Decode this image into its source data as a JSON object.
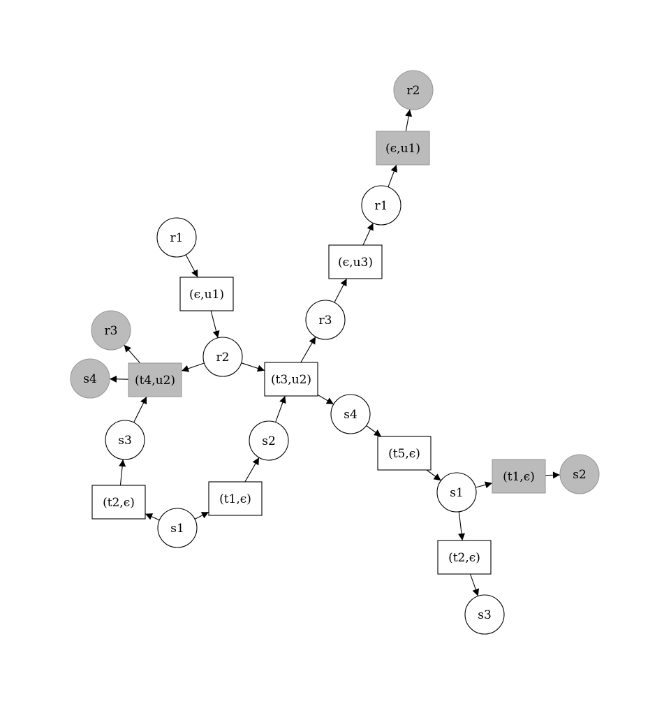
{
  "colors": {
    "background": "#ffffff",
    "stroke": "#000000",
    "highlight_fill": "#bbbbbb",
    "highlight_stroke": "#999999"
  },
  "graph": {
    "type": "petri-net-unfolding",
    "nodes": [
      {
        "id": "n_r2_top",
        "kind": "place",
        "label": "r2",
        "highlighted": true
      },
      {
        "id": "n_eu1_top",
        "kind": "transition",
        "label": "(ϵ,u1)",
        "highlighted": true
      },
      {
        "id": "n_r1_right",
        "kind": "place",
        "label": "r1",
        "highlighted": false
      },
      {
        "id": "n_eu3",
        "kind": "transition",
        "label": "(ϵ,u3)",
        "highlighted": false
      },
      {
        "id": "n_r3_mid",
        "kind": "place",
        "label": "r3",
        "highlighted": false
      },
      {
        "id": "n_r1_left",
        "kind": "place",
        "label": "r1",
        "highlighted": false
      },
      {
        "id": "n_eu1_left",
        "kind": "transition",
        "label": "(ϵ,u1)",
        "highlighted": false
      },
      {
        "id": "n_r3_gray",
        "kind": "place",
        "label": "r3",
        "highlighted": true
      },
      {
        "id": "n_r2_mid",
        "kind": "place",
        "label": "r2",
        "highlighted": false
      },
      {
        "id": "n_s4_gray",
        "kind": "place",
        "label": "s4",
        "highlighted": true
      },
      {
        "id": "n_t4u2",
        "kind": "transition",
        "label": "(t4,u2)",
        "highlighted": true
      },
      {
        "id": "n_t3u2",
        "kind": "transition",
        "label": "(t3,u2)",
        "highlighted": false
      },
      {
        "id": "n_s4_right",
        "kind": "place",
        "label": "s4",
        "highlighted": false
      },
      {
        "id": "n_s3_left",
        "kind": "place",
        "label": "s3",
        "highlighted": false
      },
      {
        "id": "n_s2_mid",
        "kind": "place",
        "label": "s2",
        "highlighted": false
      },
      {
        "id": "n_t5e",
        "kind": "transition",
        "label": "(t5,ϵ)",
        "highlighted": false
      },
      {
        "id": "n_t1e_gray",
        "kind": "transition",
        "label": "(t1,ϵ)",
        "highlighted": true
      },
      {
        "id": "n_s2_gray",
        "kind": "place",
        "label": "s2",
        "highlighted": true
      },
      {
        "id": "n_t1e_left",
        "kind": "transition",
        "label": "(t1,ϵ)",
        "highlighted": false
      },
      {
        "id": "n_s1_right",
        "kind": "place",
        "label": "s1",
        "highlighted": false
      },
      {
        "id": "n_t2e_left",
        "kind": "transition",
        "label": "(t2,ϵ)",
        "highlighted": false
      },
      {
        "id": "n_s1_left",
        "kind": "place",
        "label": "s1",
        "highlighted": false
      },
      {
        "id": "n_t2e_right",
        "kind": "transition",
        "label": "(t2,ϵ)",
        "highlighted": false
      },
      {
        "id": "n_s3_bottom",
        "kind": "place",
        "label": "s3",
        "highlighted": false
      }
    ],
    "edges": [
      {
        "from": "n_eu1_top",
        "to": "n_r2_top"
      },
      {
        "from": "n_r1_right",
        "to": "n_eu1_top"
      },
      {
        "from": "n_eu3",
        "to": "n_r1_right"
      },
      {
        "from": "n_r3_mid",
        "to": "n_eu3"
      },
      {
        "from": "n_t3u2",
        "to": "n_r3_mid"
      },
      {
        "from": "n_r1_left",
        "to": "n_eu1_left"
      },
      {
        "from": "n_eu1_left",
        "to": "n_r2_mid"
      },
      {
        "from": "n_r2_mid",
        "to": "n_t4u2"
      },
      {
        "from": "n_r2_mid",
        "to": "n_t3u2"
      },
      {
        "from": "n_t4u2",
        "to": "n_r3_gray"
      },
      {
        "from": "n_t4u2",
        "to": "n_s4_gray"
      },
      {
        "from": "n_s3_left",
        "to": "n_t4u2"
      },
      {
        "from": "n_s2_mid",
        "to": "n_t3u2"
      },
      {
        "from": "n_t3u2",
        "to": "n_s4_right"
      },
      {
        "from": "n_s4_right",
        "to": "n_t5e"
      },
      {
        "from": "n_t5e",
        "to": "n_s1_right"
      },
      {
        "from": "n_s1_right",
        "to": "n_t1e_gray"
      },
      {
        "from": "n_t1e_gray",
        "to": "n_s2_gray"
      },
      {
        "from": "n_s1_right",
        "to": "n_t2e_right"
      },
      {
        "from": "n_t2e_right",
        "to": "n_s3_bottom"
      },
      {
        "from": "n_t2e_left",
        "to": "n_s3_left"
      },
      {
        "from": "n_s1_left",
        "to": "n_t2e_left"
      },
      {
        "from": "n_s1_left",
        "to": "n_t1e_left"
      },
      {
        "from": "n_t1e_left",
        "to": "n_s2_mid"
      }
    ]
  }
}
